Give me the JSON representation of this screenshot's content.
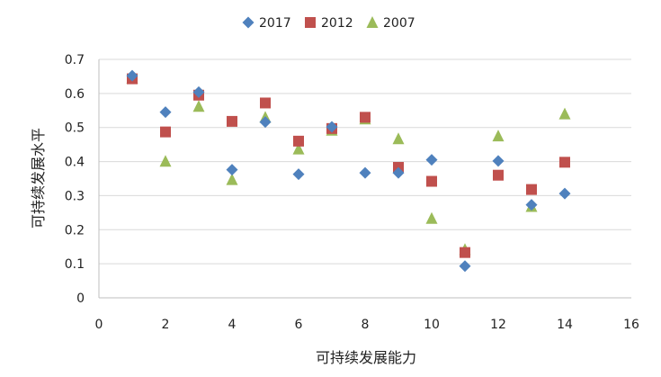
{
  "chart_data": {
    "type": "scatter",
    "xlabel": "可持续发展能力",
    "ylabel": "可持续发展水平",
    "xlim": [
      0,
      16
    ],
    "ylim": [
      0,
      0.7
    ],
    "xticks": [
      0,
      2,
      4,
      6,
      8,
      10,
      12,
      14,
      16
    ],
    "yticks": [
      0,
      0.1,
      0.2,
      0.3,
      0.4,
      0.5,
      0.6,
      0.7
    ],
    "xtick_labels": [
      "0",
      "2",
      "4",
      "6",
      "8",
      "10",
      "12",
      "14",
      "16"
    ],
    "ytick_labels": [
      "0",
      "0.1",
      "0.2",
      "0.3",
      "0.4",
      "0.5",
      "0.6",
      "0.7"
    ],
    "grid": "horizontal",
    "legend_position": "top",
    "series": [
      {
        "name": "2017",
        "marker": "diamond",
        "color": "#4f81bd",
        "x": [
          1,
          2,
          3,
          4,
          5,
          6,
          7,
          8,
          9,
          10,
          11,
          12,
          13,
          14
        ],
        "y": [
          0.652,
          0.545,
          0.604,
          0.376,
          0.516,
          0.363,
          0.502,
          0.367,
          0.367,
          0.405,
          0.093,
          0.402,
          0.273,
          0.306
        ]
      },
      {
        "name": "2012",
        "marker": "square",
        "color": "#c0504d",
        "x": [
          1,
          2,
          3,
          4,
          5,
          6,
          7,
          8,
          9,
          10,
          11,
          12,
          13,
          14
        ],
        "y": [
          0.643,
          0.487,
          0.595,
          0.518,
          0.572,
          0.46,
          0.497,
          0.53,
          0.383,
          0.342,
          0.133,
          0.36,
          0.318,
          0.398
        ]
      },
      {
        "name": "2007",
        "marker": "triangle",
        "color": "#9bbb59",
        "x": [
          1,
          2,
          3,
          4,
          5,
          6,
          7,
          8,
          9,
          10,
          11,
          12,
          13,
          14
        ],
        "y": [
          0.645,
          0.401,
          0.562,
          0.347,
          0.53,
          0.437,
          0.492,
          0.525,
          0.467,
          0.233,
          0.142,
          0.475,
          0.268,
          0.54
        ]
      }
    ]
  }
}
